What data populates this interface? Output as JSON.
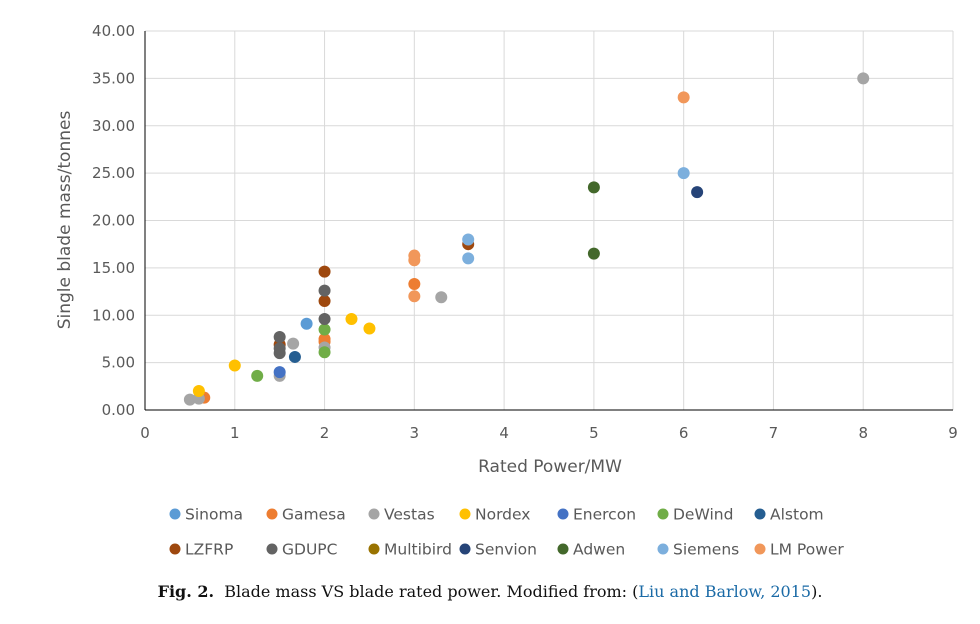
{
  "chart_data": {
    "type": "scatter",
    "xlabel": "Rated Power/MW",
    "ylabel": "Single blade mass/tonnes",
    "xlim": [
      0,
      9
    ],
    "ylim": [
      0,
      40
    ],
    "x_ticks": [
      0,
      1,
      2,
      3,
      4,
      5,
      6,
      7,
      8,
      9
    ],
    "y_ticks": [
      "0.00",
      "5.00",
      "10.00",
      "15.00",
      "20.00",
      "25.00",
      "30.00",
      "35.00",
      "40.00"
    ],
    "grid": true,
    "legend_position": "bottom",
    "series": [
      {
        "name": "Sinoma",
        "color": "#5b9bd5",
        "points": [
          [
            1.8,
            9.1
          ]
        ]
      },
      {
        "name": "Gamesa",
        "color": "#ed7d31",
        "points": [
          [
            0.66,
            1.3
          ],
          [
            2.0,
            7.2
          ],
          [
            2.0,
            7.5
          ],
          [
            3.0,
            13.3
          ]
        ]
      },
      {
        "name": "Vestas",
        "color": "#a5a5a5",
        "points": [
          [
            0.5,
            1.1
          ],
          [
            0.6,
            1.2
          ],
          [
            1.5,
            3.6
          ],
          [
            1.65,
            7.0
          ],
          [
            2.0,
            6.6
          ],
          [
            3.3,
            11.9
          ],
          [
            8.0,
            35.0
          ]
        ]
      },
      {
        "name": "Nordex",
        "color": "#ffc000",
        "points": [
          [
            0.6,
            2.0
          ],
          [
            1.0,
            4.7
          ],
          [
            2.3,
            9.6
          ],
          [
            2.5,
            8.6
          ]
        ]
      },
      {
        "name": "Enercon",
        "color": "#4472c4",
        "points": [
          [
            1.5,
            4.0
          ]
        ]
      },
      {
        "name": "DeWind",
        "color": "#70ad47",
        "points": [
          [
            1.25,
            3.6
          ],
          [
            2.0,
            6.1
          ],
          [
            2.0,
            8.5
          ]
        ]
      },
      {
        "name": "Alstom",
        "color": "#255e91",
        "points": [
          [
            1.67,
            5.6
          ]
        ]
      },
      {
        "name": "LZFRP",
        "color": "#9e480e",
        "points": [
          [
            1.5,
            6.9
          ],
          [
            2.0,
            11.5
          ],
          [
            2.0,
            14.6
          ],
          [
            3.6,
            17.5
          ]
        ]
      },
      {
        "name": "GDUPC",
        "color": "#636363",
        "points": [
          [
            1.5,
            6.0
          ],
          [
            1.5,
            6.5
          ],
          [
            1.5,
            7.7
          ],
          [
            2.0,
            9.6
          ],
          [
            2.0,
            12.6
          ]
        ]
      },
      {
        "name": "Multibird",
        "color": "#997300",
        "points": []
      },
      {
        "name": "Senvion",
        "color": "#264478",
        "points": [
          [
            6.15,
            23.0
          ]
        ]
      },
      {
        "name": "Adwen",
        "color": "#43682b",
        "points": [
          [
            5.0,
            16.5
          ],
          [
            5.0,
            23.5
          ]
        ]
      },
      {
        "name": "Siemens",
        "color": "#7cafdd",
        "points": [
          [
            3.6,
            16.0
          ],
          [
            3.6,
            18.0
          ],
          [
            6.0,
            25.0
          ]
        ]
      },
      {
        "name": "LM Power",
        "color": "#f1975a",
        "points": [
          [
            3.0,
            12.0
          ],
          [
            3.0,
            15.8
          ],
          [
            3.0,
            16.3
          ],
          [
            6.0,
            33.0
          ]
        ]
      }
    ]
  },
  "caption": {
    "label": "Fig. 2.",
    "text": "Blade mass VS blade rated power. Modified from: (",
    "link": "Liu and Barlow, 2015",
    "end": ")."
  }
}
